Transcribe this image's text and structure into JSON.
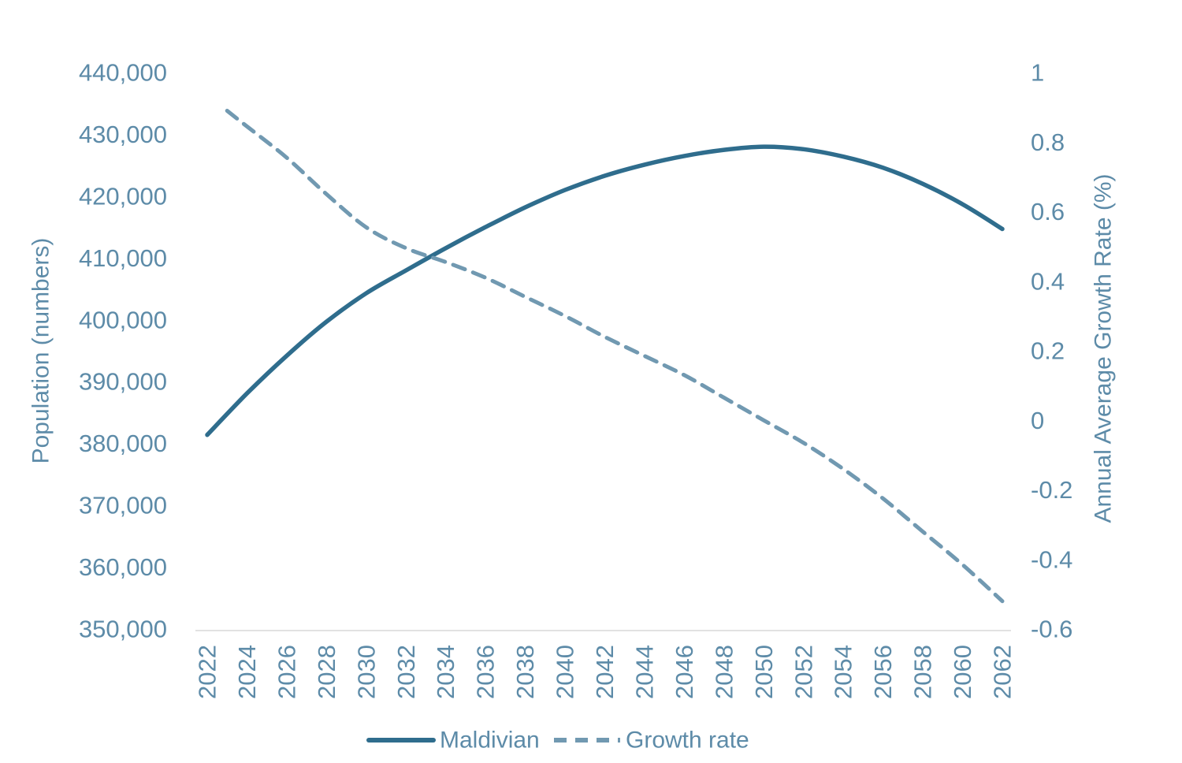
{
  "page": {
    "background": "#ffffff"
  },
  "colors": {
    "text": "#5d8ba8",
    "axis_line": "#d9d9d9",
    "solid_series": "#2f6d8d",
    "dashed_series": "#7199b1"
  },
  "chart_data": {
    "type": "line",
    "title": "",
    "xlabel": "",
    "grid": false,
    "legend_position": "bottom-center",
    "x_axis": {
      "min": 2022,
      "max": 2062,
      "tick_values": [
        2022,
        2024,
        2026,
        2028,
        2030,
        2032,
        2034,
        2036,
        2038,
        2040,
        2042,
        2044,
        2046,
        2048,
        2050,
        2052,
        2054,
        2056,
        2058,
        2060,
        2062
      ],
      "tick_labels": [
        "2022",
        "2024",
        "2026",
        "2028",
        "2030",
        "2032",
        "2034",
        "2036",
        "2038",
        "2040",
        "2042",
        "2044",
        "2046",
        "2048",
        "2050",
        "2052",
        "2054",
        "2056",
        "2058",
        "2060",
        "2062"
      ]
    },
    "left_axis": {
      "label": "Population (numbers)",
      "min": 350000,
      "max": 440000,
      "tick_values": [
        350000,
        360000,
        370000,
        380000,
        390000,
        400000,
        410000,
        420000,
        430000,
        440000
      ],
      "tick_labels": [
        "350,000",
        "360,000",
        "370,000",
        "380,000",
        "390,000",
        "400,000",
        "410,000",
        "420,000",
        "430,000",
        "440,000"
      ]
    },
    "right_axis": {
      "label": "Annual Average Growth Rate (%)",
      "min": -0.6,
      "max": 1,
      "tick_values": [
        1,
        0.8,
        0.6,
        0.4,
        0.2,
        0,
        -0.2,
        -0.4,
        -0.6
      ],
      "tick_labels": [
        "1",
        "0.8",
        "0.6",
        "0.4",
        "0.2",
        "0",
        "-0.2",
        "-0.4",
        "-0.6"
      ]
    },
    "series": [
      {
        "name": "Maldivian",
        "axis": "left",
        "line_style": "solid",
        "color": "#2f6d8d",
        "x": [
          2022,
          2024,
          2026,
          2028,
          2030,
          2032,
          2034,
          2036,
          2038,
          2040,
          2042,
          2044,
          2046,
          2048,
          2050,
          2052,
          2054,
          2056,
          2058,
          2060,
          2062
        ],
        "values": [
          381400,
          388100,
          394200,
          399700,
          404300,
          408000,
          411600,
          415000,
          418200,
          421000,
          423300,
          425100,
          426500,
          427500,
          428000,
          427600,
          426400,
          424600,
          422000,
          418700,
          414700
        ]
      },
      {
        "name": "Growth rate",
        "axis": "right",
        "line_style": "dashed",
        "color": "#7199b1",
        "x": [
          2023,
          2024,
          2026,
          2028,
          2030,
          2032,
          2034,
          2036,
          2038,
          2040,
          2042,
          2044,
          2046,
          2048,
          2050,
          2052,
          2054,
          2056,
          2058,
          2060,
          2062
        ],
        "values": [
          0.89,
          0.845,
          0.755,
          0.65,
          0.555,
          0.495,
          0.455,
          0.41,
          0.355,
          0.3,
          0.24,
          0.185,
          0.13,
          0.065,
          0,
          -0.065,
          -0.14,
          -0.225,
          -0.32,
          -0.415,
          -0.52
        ]
      }
    ]
  }
}
